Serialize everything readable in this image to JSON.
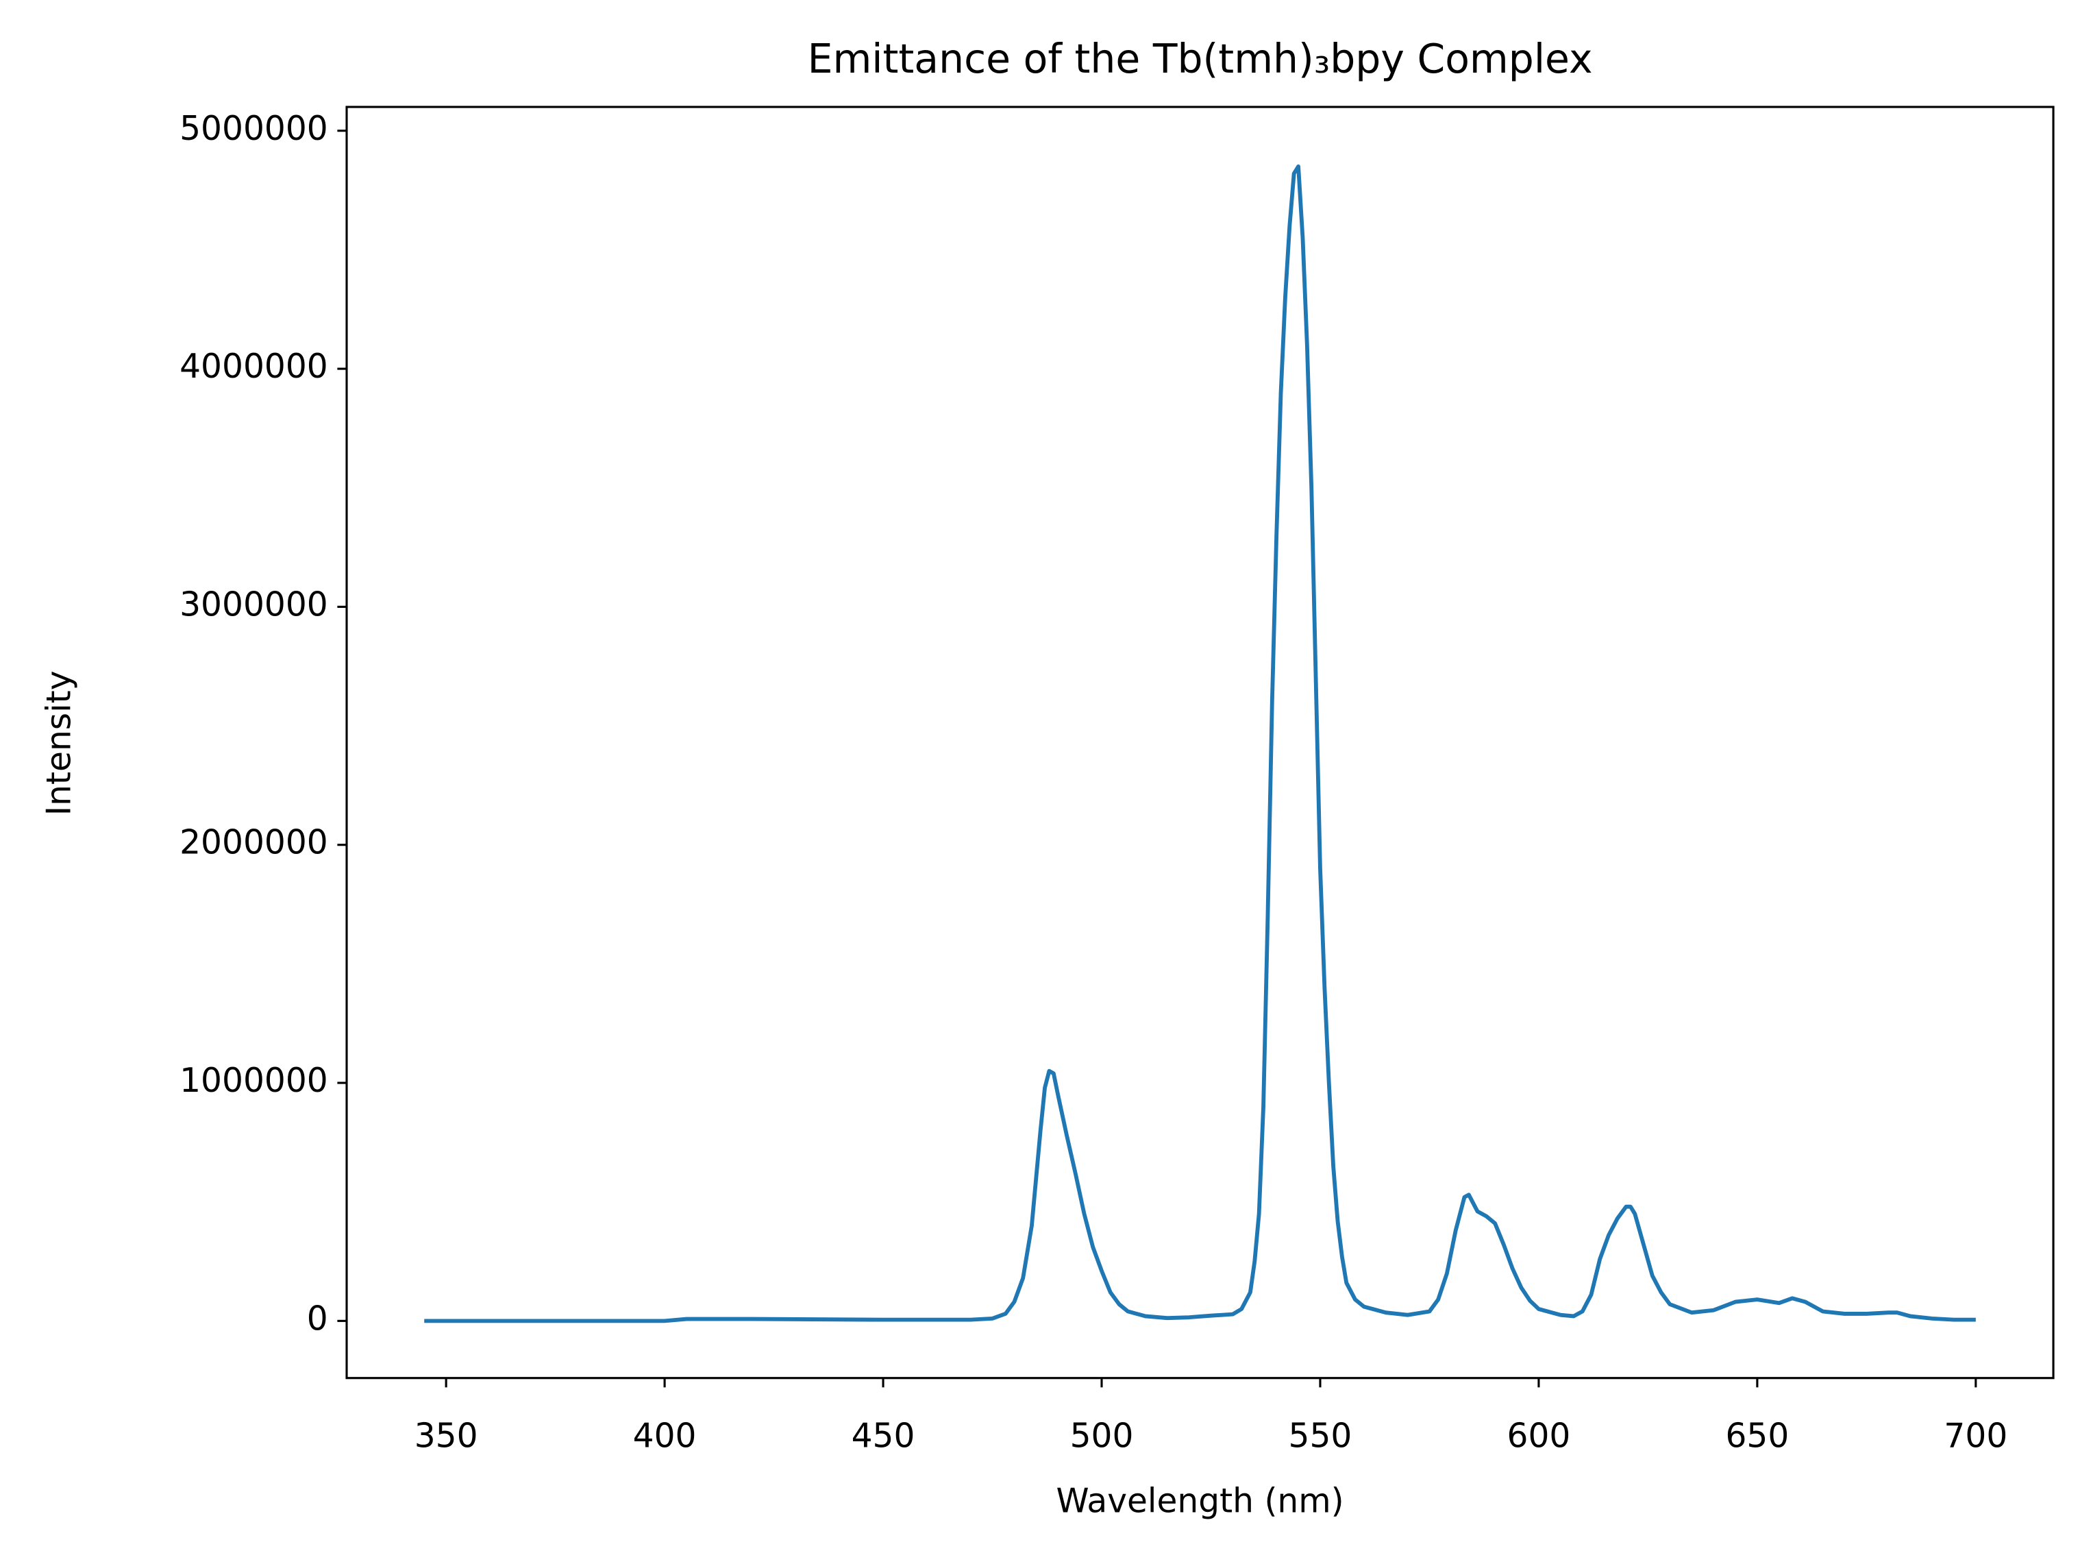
{
  "chart_data": {
    "type": "line",
    "title": "Emittance of the Tb(tmh)₃bpy Complex",
    "x_label": "Wavelength (nm)",
    "y_label": "Intensity",
    "x": [
      345,
      400,
      405,
      420,
      450,
      470,
      475,
      478,
      480,
      482,
      484,
      486,
      487,
      488,
      489,
      490,
      492,
      494,
      496,
      498,
      500,
      502,
      504,
      506,
      510,
      515,
      520,
      525,
      530,
      532,
      534,
      535,
      536,
      537,
      538,
      539,
      540,
      541,
      542,
      543,
      544,
      545,
      546,
      547,
      548,
      549,
      550,
      551,
      552,
      553,
      554,
      555,
      556,
      558,
      560,
      565,
      570,
      575,
      577,
      579,
      581,
      583,
      584,
      586,
      588,
      590,
      592,
      594,
      596,
      598,
      600,
      605,
      608,
      610,
      612,
      614,
      616,
      618,
      620,
      621,
      622,
      624,
      626,
      628,
      630,
      635,
      640,
      645,
      650,
      655,
      658,
      661,
      665,
      670,
      675,
      680,
      682,
      685,
      690,
      695,
      700
    ],
    "series": [
      {
        "name": "Intensity",
        "color": "#1f77b4",
        "values": [
          0,
          0,
          8000,
          8000,
          5000,
          5000,
          10000,
          30000,
          80000,
          180000,
          400000,
          800000,
          980000,
          1050000,
          1040000,
          950000,
          780000,
          620000,
          450000,
          310000,
          210000,
          120000,
          70000,
          40000,
          20000,
          12000,
          15000,
          22000,
          28000,
          50000,
          120000,
          250000,
          450000,
          900000,
          1700000,
          2600000,
          3300000,
          3900000,
          4300000,
          4600000,
          4820000,
          4850000,
          4550000,
          4100000,
          3500000,
          2700000,
          1900000,
          1400000,
          1000000,
          650000,
          420000,
          270000,
          160000,
          90000,
          60000,
          35000,
          25000,
          40000,
          90000,
          200000,
          380000,
          520000,
          530000,
          460000,
          440000,
          410000,
          320000,
          220000,
          140000,
          85000,
          50000,
          25000,
          20000,
          40000,
          110000,
          260000,
          360000,
          430000,
          480000,
          480000,
          450000,
          320000,
          190000,
          120000,
          70000,
          35000,
          45000,
          80000,
          90000,
          75000,
          95000,
          80000,
          40000,
          30000,
          30000,
          35000,
          35000,
          20000,
          10000,
          5000,
          5000
        ]
      }
    ],
    "xlim": [
      327.25,
      717.75
    ],
    "xticks": [
      350,
      400,
      450,
      500,
      550,
      600,
      650,
      700
    ],
    "ylim": [
      -240000,
      5100000
    ],
    "yticks": [
      0,
      1000000,
      2000000,
      3000000,
      4000000,
      5000000
    ]
  }
}
